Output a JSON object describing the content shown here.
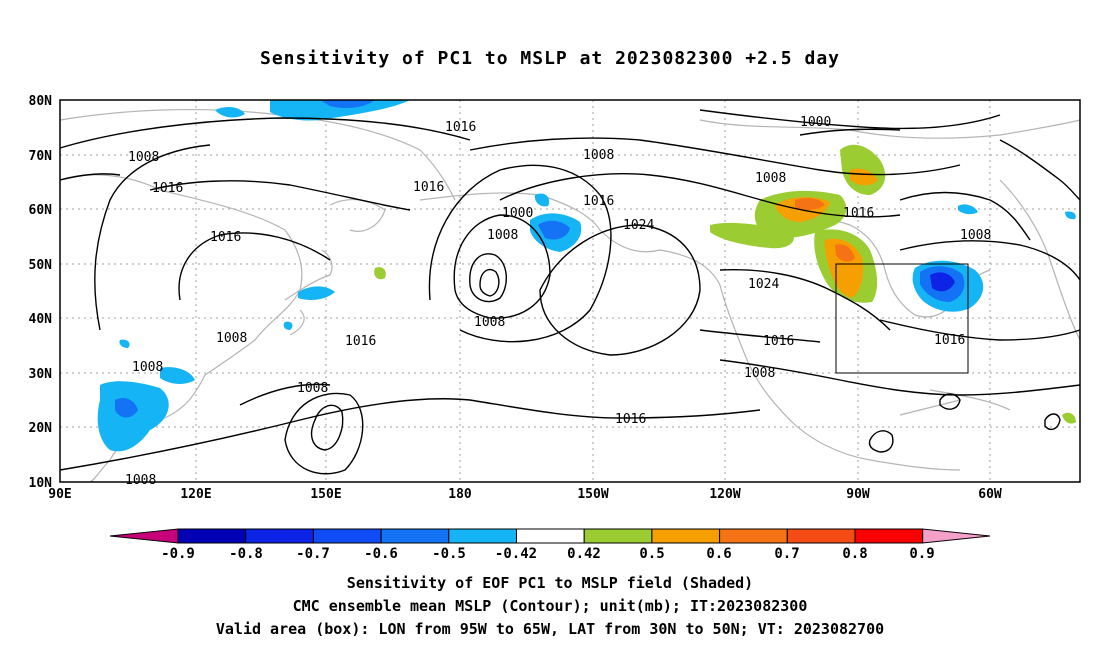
{
  "title": "Sensitivity of PC1 to MSLP at 2023082300 +2.5 day",
  "lat_labels": [
    "80N",
    "70N",
    "60N",
    "50N",
    "40N",
    "30N",
    "20N",
    "10N"
  ],
  "lon_labels": [
    "90E",
    "120E",
    "150E",
    "180",
    "150W",
    "120W",
    "90W",
    "60W"
  ],
  "contour_labels": [
    "1016",
    "1008",
    "1016",
    "1016",
    "1008",
    "1016",
    "1000",
    "1008",
    "1000",
    "1008",
    "1016",
    "1024",
    "1008",
    "1016",
    "1008",
    "1024",
    "1016",
    "1016",
    "1008",
    "1016",
    "1008",
    "1008",
    "1008",
    "1008",
    "1016"
  ],
  "colorbar": {
    "labels": [
      "-0.9",
      "-0.8",
      "-0.7",
      "-0.6",
      "-0.5",
      "-0.42",
      "0.42",
      "0.5",
      "0.6",
      "0.7",
      "0.8",
      "0.9"
    ],
    "colors": [
      "#c8007a",
      "#0000b4",
      "#0d23e6",
      "#0f4cf5",
      "#1473f5",
      "#14b4f5",
      "#ffffff",
      "#9bcd32",
      "#f5a000",
      "#f57314",
      "#f54b14",
      "#fa0000",
      "#f5a0c8"
    ]
  },
  "captions": [
    "Sensitivity of EOF PC1 to MSLP field (Shaded)",
    "CMC ensemble mean MSLP (Contour); unit(mb); IT:2023082300",
    "Valid area (box): LON from 95W to 65W, LAT from 30N to 50N; VT: 2023082700"
  ]
}
